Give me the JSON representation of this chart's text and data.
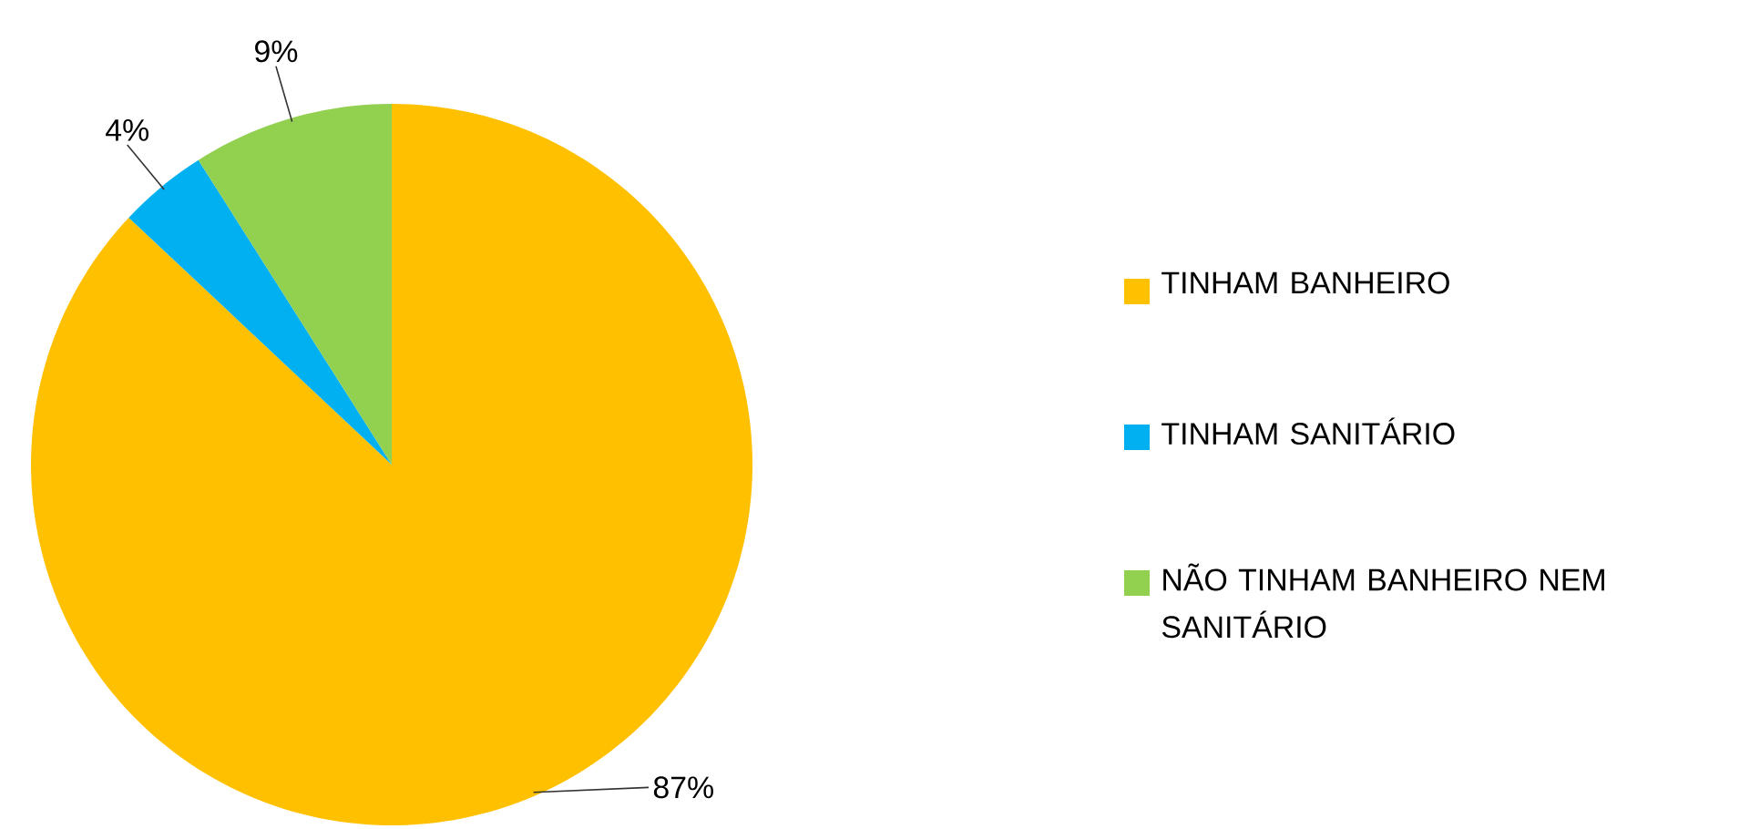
{
  "chart_data": {
    "type": "pie",
    "categories": [
      "TINHAM BANHEIRO",
      "TINHAM SANITÁRIO",
      "NÃO TINHAM BANHEIRO NEM SANITÁRIO"
    ],
    "values": [
      87,
      4,
      9
    ],
    "value_labels": [
      "87%",
      "4%",
      "9%"
    ],
    "colors": [
      "#ffc000",
      "#00b0f0",
      "#92d050"
    ],
    "legend": "right"
  }
}
